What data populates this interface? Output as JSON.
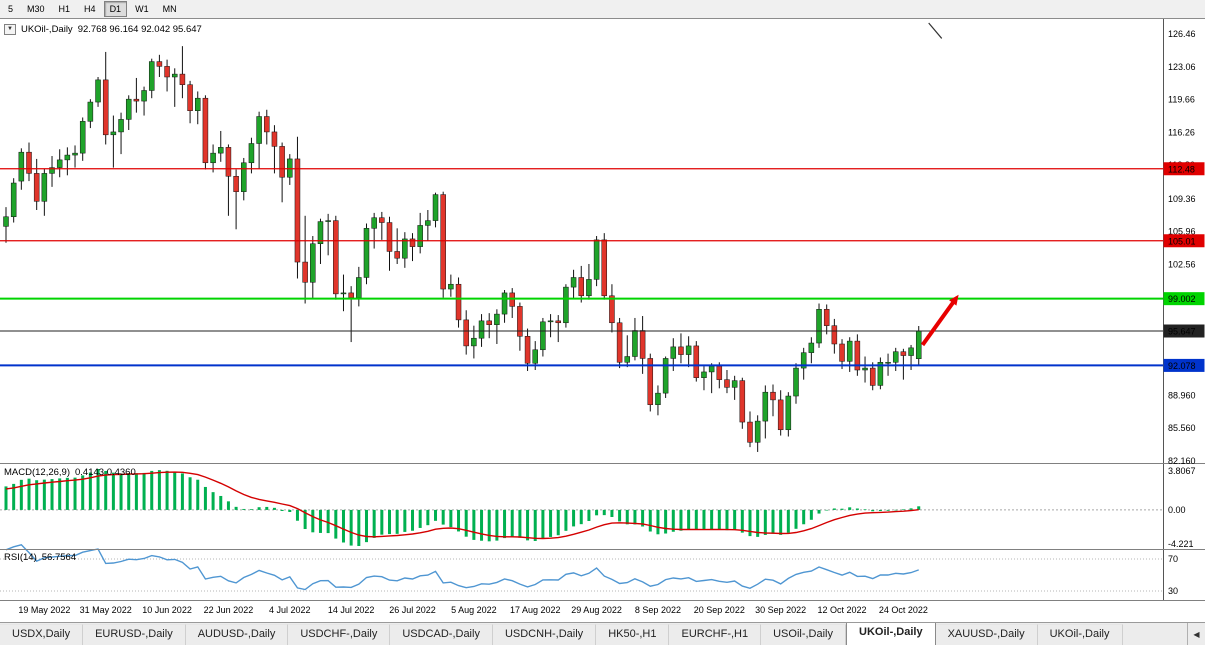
{
  "toolbar": {
    "timeframes": [
      "5",
      "M30",
      "H1",
      "H4",
      "D1",
      "W1",
      "MN"
    ],
    "active": "D1"
  },
  "chart_header": {
    "dropdown_icon": "▼",
    "symbol": "UKOil-,Daily",
    "ohlc_text": "92.768 96.164 92.042 95.647"
  },
  "price_axis": {
    "labels": [
      "126.46",
      "123.06",
      "119.66",
      "116.26",
      "112.86",
      "109.36",
      "105.96",
      "102.56",
      "99.16",
      "95.76",
      "92.36",
      "88.960",
      "85.560",
      "82.160"
    ]
  },
  "hlines": [
    {
      "price": 112.48,
      "label": "112.48",
      "color": "#e00000",
      "text_color": "#ffffff",
      "width": 1.2
    },
    {
      "price": 105.01,
      "label": "105.01",
      "color": "#e00000",
      "text_color": "#ffffff",
      "width": 1.2
    },
    {
      "price": 99.002,
      "label": "99.002",
      "color": "#00d400",
      "text_color": "#003300",
      "width": 2
    },
    {
      "price": 95.647,
      "label": "95.647",
      "color": "#222222",
      "text_color": "#ffffff",
      "width": 1
    },
    {
      "price": 92.078,
      "label": "92.078",
      "color": "#0033cc",
      "text_color": "#ffffff",
      "width": 2
    }
  ],
  "colors": {
    "up": "#1fa32a",
    "down": "#e0352b",
    "outline": "#111111",
    "background": "#ffffff",
    "divider": "#808080",
    "axis_line": "#555555"
  },
  "chart_data": {
    "type": "candlestick",
    "symbol": "UKOil-",
    "timeframe": "Daily",
    "title": "UKOil-,Daily 92.768 96.164 92.042 95.647",
    "ylim": [
      82.16,
      126.46
    ],
    "x_ticks": [
      {
        "index": 5,
        "label": "19 May 2022"
      },
      {
        "index": 13,
        "label": "31 May 2022"
      },
      {
        "index": 21,
        "label": "10 Jun 2022"
      },
      {
        "index": 29,
        "label": "22 Jun 2022"
      },
      {
        "index": 37,
        "label": "4 Jul 2022"
      },
      {
        "index": 45,
        "label": "14 Jul 2022"
      },
      {
        "index": 53,
        "label": "26 Jul 2022"
      },
      {
        "index": 61,
        "label": "5 Aug 2022"
      },
      {
        "index": 69,
        "label": "17 Aug 2022"
      },
      {
        "index": 77,
        "label": "29 Aug 2022"
      },
      {
        "index": 85,
        "label": "8 Sep 2022"
      },
      {
        "index": 93,
        "label": "20 Sep 2022"
      },
      {
        "index": 101,
        "label": "30 Sep 2022"
      },
      {
        "index": 109,
        "label": "12 Oct 2022"
      },
      {
        "index": 117,
        "label": "24 Oct 2022"
      }
    ],
    "warmup_closes": [
      97.0,
      98.2,
      98.5,
      99.5,
      100.8,
      102.0,
      103.5,
      105.0,
      106.0,
      107.2,
      108.0,
      107.0,
      105.5,
      106.0,
      106.8,
      106.2
    ],
    "candles": [
      [
        106.5,
        108.5,
        104.8,
        107.5
      ],
      [
        107.5,
        111.5,
        106.9,
        111.0
      ],
      [
        111.2,
        114.6,
        110.3,
        114.2
      ],
      [
        114.2,
        115.2,
        111.2,
        112.0
      ],
      [
        112.0,
        113.5,
        108.2,
        109.1
      ],
      [
        109.1,
        112.5,
        107.6,
        112.0
      ],
      [
        112.0,
        113.8,
        110.6,
        112.6
      ],
      [
        112.6,
        114.5,
        111.6,
        113.4
      ],
      [
        113.4,
        114.7,
        111.8,
        113.9
      ],
      [
        113.9,
        114.9,
        112.6,
        114.1
      ],
      [
        114.1,
        117.8,
        113.3,
        117.4
      ],
      [
        117.4,
        119.7,
        116.7,
        119.4
      ],
      [
        119.4,
        122.0,
        118.9,
        121.7
      ],
      [
        121.7,
        124.6,
        115.0,
        116.0
      ],
      [
        116.0,
        118.0,
        112.6,
        116.3
      ],
      [
        116.3,
        118.3,
        114.0,
        117.6
      ],
      [
        117.6,
        120.1,
        116.5,
        119.7
      ],
      [
        119.7,
        121.9,
        118.3,
        119.5
      ],
      [
        119.5,
        121.0,
        118.0,
        120.6
      ],
      [
        120.6,
        123.9,
        119.8,
        123.6
      ],
      [
        123.6,
        124.3,
        122.0,
        123.1
      ],
      [
        123.1,
        123.8,
        120.5,
        122.0
      ],
      [
        122.0,
        122.9,
        118.9,
        122.3
      ],
      [
        122.3,
        125.2,
        119.8,
        121.2
      ],
      [
        121.2,
        121.6,
        117.2,
        118.5
      ],
      [
        118.5,
        120.5,
        117.1,
        119.8
      ],
      [
        119.8,
        120.1,
        112.4,
        113.1
      ],
      [
        113.1,
        115.0,
        112.1,
        114.1
      ],
      [
        114.1,
        116.4,
        113.2,
        114.7
      ],
      [
        114.7,
        115.0,
        107.6,
        111.7
      ],
      [
        111.7,
        112.4,
        106.2,
        110.1
      ],
      [
        110.1,
        113.6,
        109.2,
        113.1
      ],
      [
        113.1,
        115.7,
        112.0,
        115.1
      ],
      [
        115.1,
        118.4,
        112.5,
        117.9
      ],
      [
        117.9,
        118.6,
        115.0,
        116.3
      ],
      [
        116.3,
        117.0,
        112.0,
        114.8
      ],
      [
        114.8,
        115.2,
        109.0,
        111.6
      ],
      [
        111.6,
        114.0,
        110.8,
        113.5
      ],
      [
        113.5,
        115.8,
        101.1,
        102.8
      ],
      [
        102.8,
        107.6,
        98.5,
        100.7
      ],
      [
        100.7,
        105.5,
        99.0,
        104.7
      ],
      [
        104.7,
        107.3,
        102.6,
        107.0
      ],
      [
        107.0,
        107.8,
        103.5,
        107.1
      ],
      [
        107.1,
        107.6,
        98.9,
        99.5
      ],
      [
        99.5,
        101.5,
        97.7,
        99.6
      ],
      [
        99.6,
        100.3,
        94.5,
        99.1
      ],
      [
        99.1,
        102.3,
        98.2,
        101.2
      ],
      [
        101.2,
        106.8,
        100.5,
        106.3
      ],
      [
        106.3,
        107.9,
        104.2,
        107.4
      ],
      [
        107.4,
        108.0,
        105.1,
        106.9
      ],
      [
        106.9,
        107.5,
        101.9,
        103.9
      ],
      [
        103.9,
        106.3,
        102.6,
        103.2
      ],
      [
        103.2,
        105.9,
        102.2,
        105.2
      ],
      [
        105.2,
        105.8,
        102.9,
        104.4
      ],
      [
        104.4,
        107.9,
        103.7,
        106.6
      ],
      [
        106.6,
        108.2,
        105.0,
        107.1
      ],
      [
        107.1,
        110.0,
        106.4,
        109.8
      ],
      [
        109.8,
        110.1,
        99.1,
        100.0
      ],
      [
        100.0,
        101.5,
        99.2,
        100.5
      ],
      [
        100.5,
        101.2,
        96.0,
        96.8
      ],
      [
        96.8,
        97.8,
        93.2,
        94.1
      ],
      [
        94.1,
        96.2,
        92.8,
        94.9
      ],
      [
        94.9,
        97.4,
        94.0,
        96.7
      ],
      [
        96.7,
        97.5,
        94.9,
        96.3
      ],
      [
        96.3,
        97.9,
        94.3,
        97.4
      ],
      [
        97.4,
        99.9,
        96.5,
        99.6
      ],
      [
        99.6,
        100.1,
        97.0,
        98.2
      ],
      [
        98.2,
        98.6,
        93.6,
        95.1
      ],
      [
        95.1,
        95.9,
        91.5,
        92.3
      ],
      [
        92.3,
        94.6,
        91.6,
        93.7
      ],
      [
        93.7,
        97.0,
        93.0,
        96.6
      ],
      [
        96.6,
        97.4,
        95.0,
        96.7
      ],
      [
        96.7,
        97.3,
        94.5,
        96.5
      ],
      [
        96.5,
        100.5,
        96.0,
        100.2
      ],
      [
        100.2,
        102.0,
        99.0,
        101.2
      ],
      [
        101.2,
        102.4,
        98.6,
        99.3
      ],
      [
        99.3,
        102.6,
        98.9,
        101.0
      ],
      [
        101.0,
        105.5,
        100.3,
        105.1
      ],
      [
        105.1,
        105.8,
        98.9,
        99.3
      ],
      [
        99.3,
        100.5,
        95.5,
        96.5
      ],
      [
        96.5,
        97.0,
        91.8,
        92.4
      ],
      [
        92.4,
        95.2,
        91.9,
        93.0
      ],
      [
        93.0,
        97.0,
        92.6,
        95.7
      ],
      [
        95.7,
        97.2,
        91.2,
        92.8
      ],
      [
        92.8,
        93.3,
        87.3,
        88.0
      ],
      [
        88.0,
        90.0,
        86.9,
        89.2
      ],
      [
        89.2,
        93.0,
        88.7,
        92.8
      ],
      [
        92.8,
        94.9,
        91.5,
        94.0
      ],
      [
        94.0,
        95.4,
        92.3,
        93.2
      ],
      [
        93.2,
        95.1,
        91.9,
        94.1
      ],
      [
        94.1,
        94.6,
        90.4,
        90.8
      ],
      [
        90.8,
        92.0,
        89.5,
        91.4
      ],
      [
        91.4,
        92.3,
        89.2,
        92.0
      ],
      [
        92.0,
        92.4,
        89.7,
        90.6
      ],
      [
        90.6,
        91.6,
        89.2,
        89.8
      ],
      [
        89.8,
        91.0,
        88.5,
        90.5
      ],
      [
        90.5,
        90.8,
        85.5,
        86.2
      ],
      [
        86.2,
        87.3,
        83.6,
        84.1
      ],
      [
        84.1,
        86.9,
        83.1,
        86.3
      ],
      [
        86.3,
        90.0,
        84.5,
        89.3
      ],
      [
        89.3,
        90.1,
        86.8,
        88.5
      ],
      [
        88.5,
        89.5,
        84.8,
        85.4
      ],
      [
        85.4,
        89.3,
        84.7,
        88.9
      ],
      [
        88.9,
        92.3,
        88.1,
        91.8
      ],
      [
        91.8,
        93.9,
        90.6,
        93.4
      ],
      [
        93.4,
        95.0,
        92.3,
        94.4
      ],
      [
        94.4,
        98.5,
        93.9,
        97.9
      ],
      [
        97.9,
        98.4,
        95.3,
        96.2
      ],
      [
        96.2,
        96.9,
        93.3,
        94.3
      ],
      [
        94.3,
        94.8,
        91.7,
        92.5
      ],
      [
        92.5,
        95.0,
        91.4,
        94.6
      ],
      [
        94.6,
        95.3,
        91.0,
        91.6
      ],
      [
        91.6,
        93.0,
        90.3,
        91.8
      ],
      [
        91.8,
        92.4,
        89.5,
        90.0
      ],
      [
        90.0,
        92.9,
        89.6,
        92.4
      ],
      [
        92.4,
        93.3,
        91.0,
        92.4
      ],
      [
        92.4,
        93.9,
        91.5,
        93.5
      ],
      [
        93.5,
        93.8,
        90.6,
        93.1
      ],
      [
        93.1,
        94.2,
        91.6,
        93.9
      ],
      [
        92.768,
        96.164,
        92.042,
        95.647
      ]
    ],
    "indicators": {
      "macd": {
        "name": "MACD(12,26,9)",
        "values_text": "0.4143 0.4360",
        "fast": 12,
        "slow": 26,
        "signal": 9,
        "axis_labels": [
          "3.8067",
          "0.00",
          "-4.221"
        ],
        "histogram_color": "#00b050",
        "signal_color": "#d40000"
      },
      "rsi": {
        "name": "RSI(14)",
        "value_text": "56.7564",
        "period": 14,
        "levels": [
          70,
          30
        ],
        "level_labels": [
          "70",
          "30"
        ],
        "line_color": "#4f96d2"
      }
    },
    "annotations": [
      {
        "type": "arrow",
        "x1_index": 119.5,
        "y1_price": 94.2,
        "x2_index": 124.2,
        "y2_price": 99.4,
        "color": "#e80000",
        "width": 4
      },
      {
        "type": "line",
        "x1_index": 120.3,
        "y1_price": 127.6,
        "x2_index": 122.0,
        "y2_price": 126.0,
        "color": "#333333",
        "width": 1.2
      }
    ]
  },
  "tabs": {
    "items": [
      "USDX,Daily",
      "EURUSD-,Daily",
      "AUDUSD-,Daily",
      "USDCHF-,Daily",
      "USDCAD-,Daily",
      "USDCNH-,Daily",
      "HK50-,H1",
      "EURCHF-,H1",
      "USOil-,Daily",
      "UKOil-,Daily",
      "XAUUSD-,Daily",
      "UKOil-,Daily"
    ],
    "active_index": 9,
    "scroll_icon": "◀"
  }
}
